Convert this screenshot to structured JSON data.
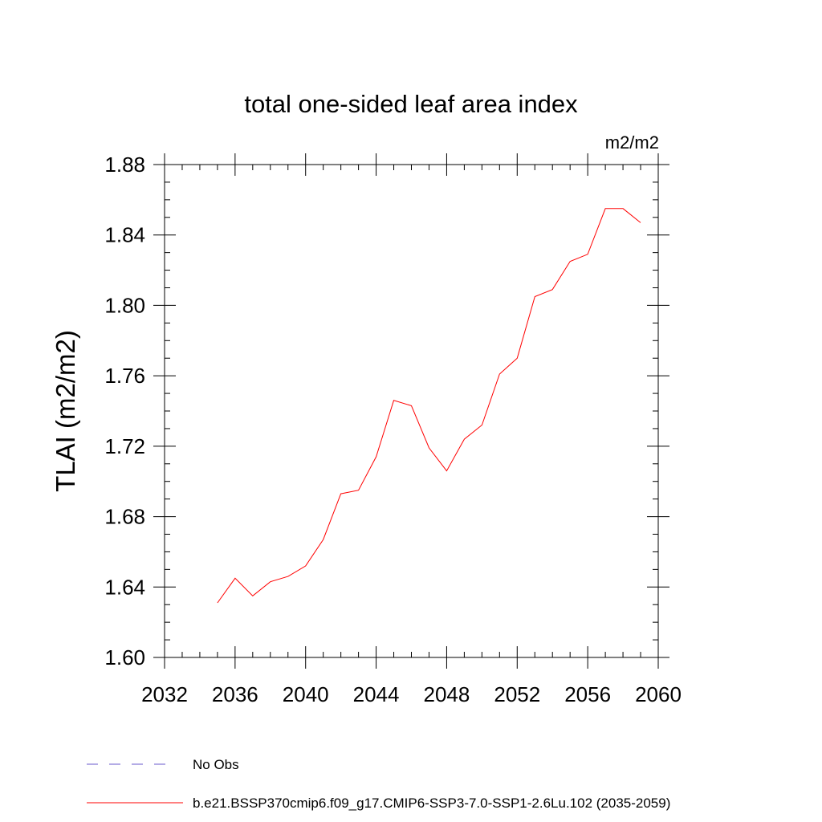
{
  "chart_data": {
    "type": "line",
    "title": "total one-sided leaf area index",
    "units_label": "m2/m2",
    "ylabel": "TLAI  (m2/m2)",
    "xlabel": "",
    "xlim": [
      2032,
      2060
    ],
    "ylim": [
      1.6,
      1.88
    ],
    "x_ticks": [
      2032,
      2036,
      2040,
      2044,
      2048,
      2052,
      2056,
      2060
    ],
    "x_tick_labels": [
      "2032",
      "2036",
      "2040",
      "2044",
      "2048",
      "2052",
      "2056",
      "2060"
    ],
    "y_ticks": [
      1.6,
      1.64,
      1.68,
      1.72,
      1.76,
      1.8,
      1.84,
      1.88
    ],
    "y_tick_labels": [
      "1.60",
      "1.64",
      "1.68",
      "1.72",
      "1.76",
      "1.80",
      "1.84",
      "1.88"
    ],
    "grid": false,
    "series": [
      {
        "name": "b.e21.BSSP370cmip6.f09_g17.CMIP6-SSP3-7.0-SSP1-2.6Lu.102 (2035-2059)",
        "color": "#ff0000",
        "x": [
          2035,
          2036,
          2037,
          2038,
          2039,
          2040,
          2041,
          2042,
          2043,
          2044,
          2045,
          2046,
          2047,
          2048,
          2049,
          2050,
          2051,
          2052,
          2053,
          2054,
          2055,
          2056,
          2057,
          2058,
          2059
        ],
        "y": [
          1.631,
          1.645,
          1.635,
          1.643,
          1.646,
          1.652,
          1.667,
          1.693,
          1.695,
          1.714,
          1.746,
          1.743,
          1.719,
          1.706,
          1.724,
          1.732,
          1.761,
          1.77,
          1.805,
          1.809,
          1.825,
          1.829,
          1.855,
          1.855,
          1.847
        ]
      }
    ],
    "legend": {
      "placement": "bottom",
      "entries": [
        {
          "label": "No Obs",
          "color": "#6a5acd",
          "style": "dashed"
        },
        {
          "label": "b.e21.BSSP370cmip6.f09_g17.CMIP6-SSP3-7.0-SSP1-2.6Lu.102 (2035-2059)",
          "color": "#ff0000",
          "style": "solid"
        }
      ]
    }
  }
}
